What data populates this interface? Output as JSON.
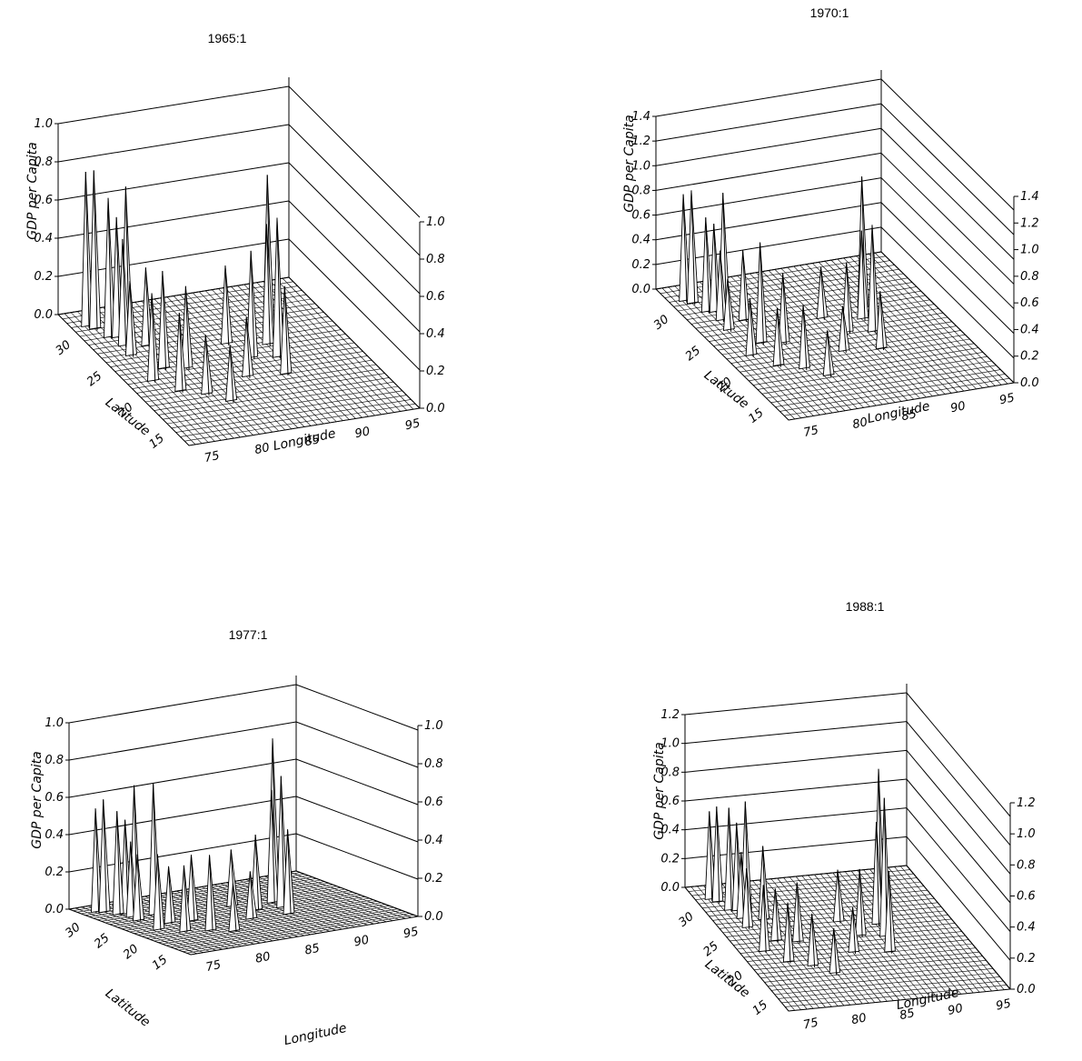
{
  "chart_data": [
    {
      "type": "surface",
      "title": "1965:1",
      "zlabel": "GDP per Capita",
      "xlabel": "Longitude",
      "ylabel": "Latitude",
      "zlim": [
        0,
        1.0
      ],
      "zticks": [
        0.0,
        0.2,
        0.4,
        0.6,
        0.8,
        1.0
      ],
      "zticks_right": [
        0.0,
        0.2,
        0.4,
        0.6,
        0.8,
        1.0
      ],
      "xticks": [
        75,
        80,
        85,
        90,
        95
      ],
      "yticks": [
        15,
        20,
        25,
        30
      ],
      "peaks": [
        {
          "lon": 74.5,
          "lat": 31.0,
          "z": 0.8
        },
        {
          "lon": 75.0,
          "lat": 30.5,
          "z": 0.82
        },
        {
          "lon": 75.5,
          "lat": 29.0,
          "z": 0.72
        },
        {
          "lon": 76.2,
          "lat": 28.8,
          "z": 0.62
        },
        {
          "lon": 76.0,
          "lat": 27.5,
          "z": 0.55
        },
        {
          "lon": 77.0,
          "lat": 28.6,
          "z": 0.78
        },
        {
          "lon": 75.8,
          "lat": 26.0,
          "z": 0.38
        },
        {
          "lon": 78.0,
          "lat": 27.0,
          "z": 0.4
        },
        {
          "lon": 77.5,
          "lat": 23.5,
          "z": 0.5
        },
        {
          "lon": 79.5,
          "lat": 23.0,
          "z": 0.42
        },
        {
          "lon": 75.5,
          "lat": 22.0,
          "z": 0.45
        },
        {
          "lon": 77.0,
          "lat": 20.0,
          "z": 0.4
        },
        {
          "lon": 79.0,
          "lat": 19.0,
          "z": 0.3
        },
        {
          "lon": 80.5,
          "lat": 17.5,
          "z": 0.28
        },
        {
          "lon": 86.0,
          "lat": 23.0,
          "z": 0.55
        },
        {
          "lon": 88.3,
          "lat": 22.5,
          "z": 0.72
        },
        {
          "lon": 88.5,
          "lat": 24.5,
          "z": 0.62
        },
        {
          "lon": 89.5,
          "lat": 26.0,
          "z": 0.82
        },
        {
          "lon": 85.0,
          "lat": 25.5,
          "z": 0.4
        },
        {
          "lon": 87.5,
          "lat": 20.0,
          "z": 0.45
        },
        {
          "lon": 84.0,
          "lat": 20.5,
          "z": 0.3
        }
      ]
    },
    {
      "type": "surface",
      "title": "1970:1",
      "zlabel": "GDP per Capita",
      "xlabel": "Longitude",
      "ylabel": "Latitude",
      "zlim": [
        0,
        1.4
      ],
      "zticks": [
        0.0,
        0.2,
        0.4,
        0.6,
        0.8,
        1.0,
        1.2,
        1.4
      ],
      "zticks_right": [
        0.0,
        0.2,
        0.4,
        0.6,
        0.8,
        1.0,
        1.2,
        1.4
      ],
      "xticks": [
        75,
        80,
        85,
        90,
        95
      ],
      "yticks": [
        15,
        20,
        25,
        30
      ],
      "peaks": [
        {
          "lon": 74.5,
          "lat": 31.0,
          "z": 0.85
        },
        {
          "lon": 75.0,
          "lat": 30.5,
          "z": 0.9
        },
        {
          "lon": 75.5,
          "lat": 29.0,
          "z": 0.75
        },
        {
          "lon": 76.2,
          "lat": 28.8,
          "z": 0.7
        },
        {
          "lon": 76.0,
          "lat": 27.5,
          "z": 0.55
        },
        {
          "lon": 77.0,
          "lat": 28.6,
          "z": 0.95
        },
        {
          "lon": 75.8,
          "lat": 26.0,
          "z": 0.4
        },
        {
          "lon": 78.0,
          "lat": 27.0,
          "z": 0.55
        },
        {
          "lon": 77.5,
          "lat": 23.5,
          "z": 0.8
        },
        {
          "lon": 79.5,
          "lat": 23.0,
          "z": 0.55
        },
        {
          "lon": 75.5,
          "lat": 22.0,
          "z": 0.45
        },
        {
          "lon": 77.0,
          "lat": 20.0,
          "z": 0.45
        },
        {
          "lon": 79.0,
          "lat": 19.0,
          "z": 0.5
        },
        {
          "lon": 80.5,
          "lat": 17.5,
          "z": 0.35
        },
        {
          "lon": 86.0,
          "lat": 23.0,
          "z": 0.55
        },
        {
          "lon": 88.3,
          "lat": 22.5,
          "z": 0.85
        },
        {
          "lon": 88.5,
          "lat": 24.5,
          "z": 0.7
        },
        {
          "lon": 89.5,
          "lat": 26.0,
          "z": 1.05
        },
        {
          "lon": 85.0,
          "lat": 25.5,
          "z": 0.4
        },
        {
          "lon": 87.5,
          "lat": 20.0,
          "z": 0.45
        },
        {
          "lon": 84.0,
          "lat": 20.5,
          "z": 0.35
        }
      ]
    },
    {
      "type": "surface",
      "title": "1977:1",
      "zlabel": "GDP per Capita",
      "xlabel": "Longitude",
      "ylabel": "Latitude",
      "zlim": [
        0,
        1.0
      ],
      "zticks": [
        0.0,
        0.2,
        0.4,
        0.6,
        0.8,
        1.0
      ],
      "zticks_right": [
        0.0,
        0.2,
        0.4,
        0.6,
        0.8,
        1.0
      ],
      "xticks": [
        75,
        80,
        85,
        90,
        95
      ],
      "yticks": [
        15,
        20,
        25,
        30
      ],
      "peaks": [
        {
          "lon": 74.5,
          "lat": 31.0,
          "z": 0.55
        },
        {
          "lon": 75.0,
          "lat": 30.5,
          "z": 0.6
        },
        {
          "lon": 75.5,
          "lat": 29.0,
          "z": 0.55
        },
        {
          "lon": 76.2,
          "lat": 28.8,
          "z": 0.5
        },
        {
          "lon": 76.0,
          "lat": 27.5,
          "z": 0.4
        },
        {
          "lon": 77.0,
          "lat": 28.6,
          "z": 0.68
        },
        {
          "lon": 75.8,
          "lat": 26.0,
          "z": 0.35
        },
        {
          "lon": 78.0,
          "lat": 27.0,
          "z": 0.7
        },
        {
          "lon": 77.5,
          "lat": 23.5,
          "z": 0.3
        },
        {
          "lon": 79.5,
          "lat": 23.0,
          "z": 0.35
        },
        {
          "lon": 75.5,
          "lat": 22.0,
          "z": 0.4
        },
        {
          "lon": 77.0,
          "lat": 20.0,
          "z": 0.35
        },
        {
          "lon": 79.0,
          "lat": 19.0,
          "z": 0.4
        },
        {
          "lon": 80.5,
          "lat": 17.5,
          "z": 0.25
        },
        {
          "lon": 86.0,
          "lat": 23.0,
          "z": 0.4
        },
        {
          "lon": 88.3,
          "lat": 22.5,
          "z": 0.7
        },
        {
          "lon": 88.5,
          "lat": 24.5,
          "z": 0.6
        },
        {
          "lon": 89.5,
          "lat": 26.0,
          "z": 0.85
        },
        {
          "lon": 85.0,
          "lat": 25.5,
          "z": 0.3
        },
        {
          "lon": 87.5,
          "lat": 20.0,
          "z": 0.45
        },
        {
          "lon": 84.0,
          "lat": 20.5,
          "z": 0.25
        }
      ]
    },
    {
      "type": "surface",
      "title": "1988:1",
      "zlabel": "GDP per Capita",
      "xlabel": "Longitude",
      "ylabel": "Latitude",
      "zlim": [
        0,
        1.2
      ],
      "zticks": [
        0.0,
        0.2,
        0.4,
        0.6,
        0.8,
        1.0,
        1.2
      ],
      "zticks_right": [
        0.0,
        0.2,
        0.4,
        0.6,
        0.8,
        1.0,
        1.2
      ],
      "xticks": [
        75,
        80,
        85,
        90,
        95
      ],
      "yticks": [
        15,
        20,
        25,
        30
      ],
      "peaks": [
        {
          "lon": 74.5,
          "lat": 31.0,
          "z": 0.6
        },
        {
          "lon": 75.0,
          "lat": 30.5,
          "z": 0.65
        },
        {
          "lon": 75.5,
          "lat": 29.0,
          "z": 0.7
        },
        {
          "lon": 76.2,
          "lat": 28.8,
          "z": 0.6
        },
        {
          "lon": 76.0,
          "lat": 27.5,
          "z": 0.45
        },
        {
          "lon": 77.0,
          "lat": 28.6,
          "z": 0.75
        },
        {
          "lon": 75.8,
          "lat": 26.0,
          "z": 0.4
        },
        {
          "lon": 78.0,
          "lat": 27.0,
          "z": 0.5
        },
        {
          "lon": 77.5,
          "lat": 23.5,
          "z": 0.35
        },
        {
          "lon": 79.5,
          "lat": 23.0,
          "z": 0.4
        },
        {
          "lon": 75.5,
          "lat": 22.0,
          "z": 0.45
        },
        {
          "lon": 77.0,
          "lat": 20.0,
          "z": 0.4
        },
        {
          "lon": 79.0,
          "lat": 19.0,
          "z": 0.35
        },
        {
          "lon": 80.5,
          "lat": 17.5,
          "z": 0.3
        },
        {
          "lon": 86.0,
          "lat": 23.0,
          "z": 0.45
        },
        {
          "lon": 88.3,
          "lat": 22.5,
          "z": 0.95
        },
        {
          "lon": 88.5,
          "lat": 24.5,
          "z": 0.7
        },
        {
          "lon": 89.5,
          "lat": 26.0,
          "z": 1.0
        },
        {
          "lon": 85.0,
          "lat": 25.5,
          "z": 0.35
        },
        {
          "lon": 87.5,
          "lat": 20.0,
          "z": 0.55
        },
        {
          "lon": 84.0,
          "lat": 20.5,
          "z": 0.3
        }
      ]
    }
  ]
}
